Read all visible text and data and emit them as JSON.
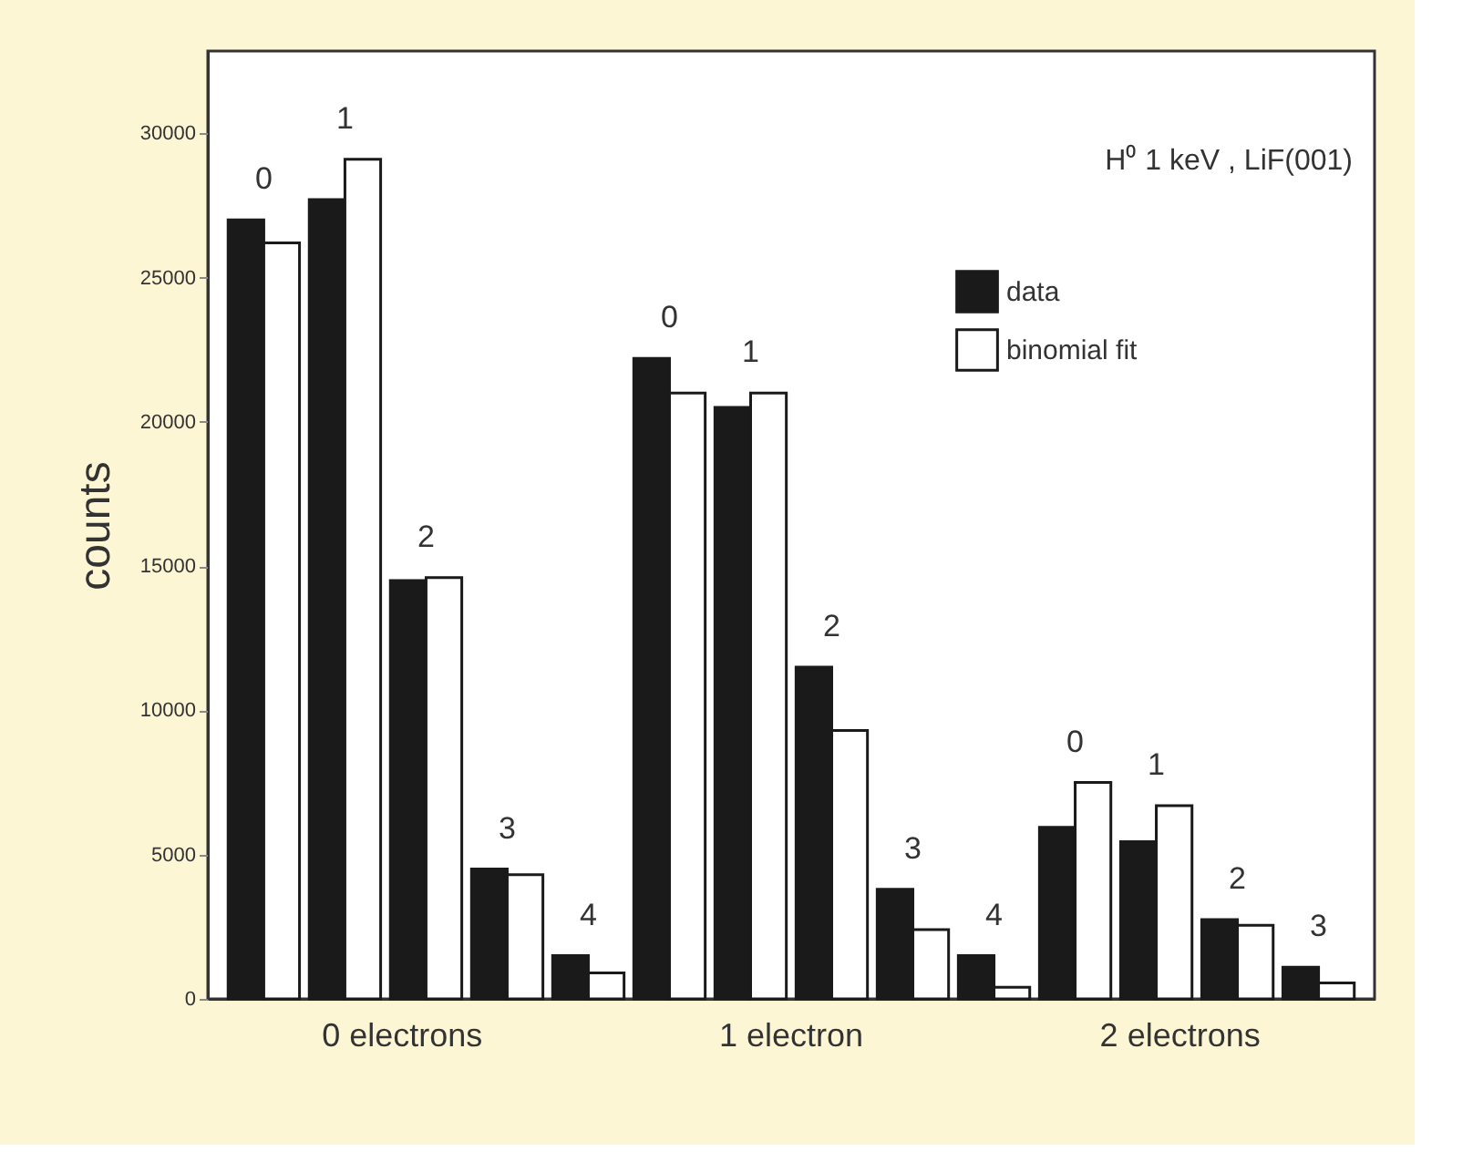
{
  "chart_data": {
    "type": "bar",
    "title": "H⁰ 1 keV , LiF(001)",
    "ylabel": "counts",
    "categories": [
      "0",
      "1",
      "2",
      "3",
      "4",
      "0",
      "1",
      "2",
      "3",
      "4",
      "0",
      "1",
      "2",
      "3"
    ],
    "series": [
      {
        "name": "data",
        "color": "#1a1a1a",
        "values": [
          27000,
          27700,
          14500,
          4500,
          1500,
          22200,
          20500,
          11500,
          3800,
          1500,
          5950,
          5450,
          2750,
          1100
        ]
      },
      {
        "name": "binomial fit",
        "color": "#ffffff",
        "values": [
          26200,
          29100,
          14600,
          4300,
          900,
          21000,
          21000,
          9300,
          2400,
          400,
          7500,
          6700,
          2550,
          550
        ]
      }
    ],
    "annotations": [
      "0 electrons",
      "1 electron",
      "2 electrons"
    ],
    "ylim": [
      0,
      32850
    ],
    "yticks": [
      0,
      5000,
      10000,
      15000,
      20000,
      25000,
      30000
    ],
    "grid": false,
    "legend": "top right"
  }
}
